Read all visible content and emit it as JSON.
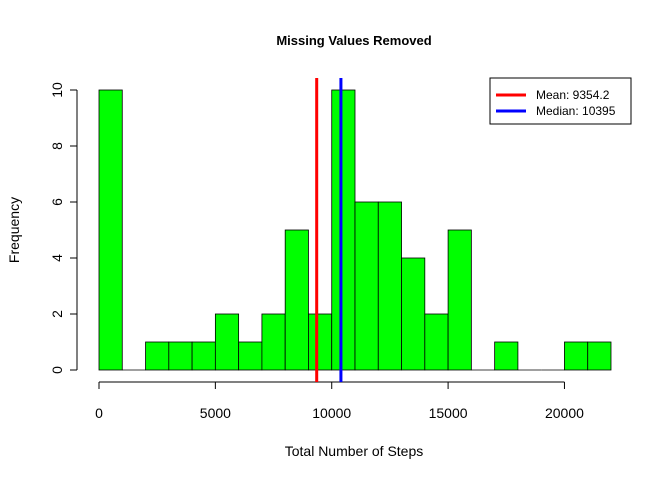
{
  "chart_data": {
    "type": "bar",
    "title": "Missing Values Removed",
    "xlabel": "Total Number of Steps",
    "ylabel": "Frequency",
    "bin_width": 1000,
    "bins": [
      {
        "start": 0,
        "end": 1000,
        "count": 10
      },
      {
        "start": 1000,
        "end": 2000,
        "count": 0
      },
      {
        "start": 2000,
        "end": 3000,
        "count": 1
      },
      {
        "start": 3000,
        "end": 4000,
        "count": 1
      },
      {
        "start": 4000,
        "end": 5000,
        "count": 1
      },
      {
        "start": 5000,
        "end": 6000,
        "count": 2
      },
      {
        "start": 6000,
        "end": 7000,
        "count": 1
      },
      {
        "start": 7000,
        "end": 8000,
        "count": 2
      },
      {
        "start": 8000,
        "end": 9000,
        "count": 5
      },
      {
        "start": 9000,
        "end": 10000,
        "count": 2
      },
      {
        "start": 10000,
        "end": 11000,
        "count": 10
      },
      {
        "start": 11000,
        "end": 12000,
        "count": 6
      },
      {
        "start": 12000,
        "end": 13000,
        "count": 6
      },
      {
        "start": 13000,
        "end": 14000,
        "count": 4
      },
      {
        "start": 14000,
        "end": 15000,
        "count": 2
      },
      {
        "start": 15000,
        "end": 16000,
        "count": 5
      },
      {
        "start": 16000,
        "end": 17000,
        "count": 0
      },
      {
        "start": 17000,
        "end": 18000,
        "count": 1
      },
      {
        "start": 18000,
        "end": 19000,
        "count": 0
      },
      {
        "start": 19000,
        "end": 20000,
        "count": 0
      },
      {
        "start": 20000,
        "end": 21000,
        "count": 1
      },
      {
        "start": 21000,
        "end": 22000,
        "count": 1
      }
    ],
    "xlim": [
      0,
      22000
    ],
    "ylim": [
      0,
      10
    ],
    "x_ticks": [
      0,
      5000,
      10000,
      15000,
      20000
    ],
    "y_ticks": [
      0,
      2,
      4,
      6,
      8,
      10
    ],
    "bar_color": "#00ff00",
    "bar_border_color": "#000000",
    "lines": [
      {
        "name": "Mean",
        "value": 9354.2,
        "color": "#ff0000",
        "legend_label": "Mean:  9354.2"
      },
      {
        "name": "Median",
        "value": 10395,
        "color": "#0000ff",
        "legend_label": "Median:  10395"
      }
    ],
    "legend_position": "top-right",
    "grid": false
  }
}
